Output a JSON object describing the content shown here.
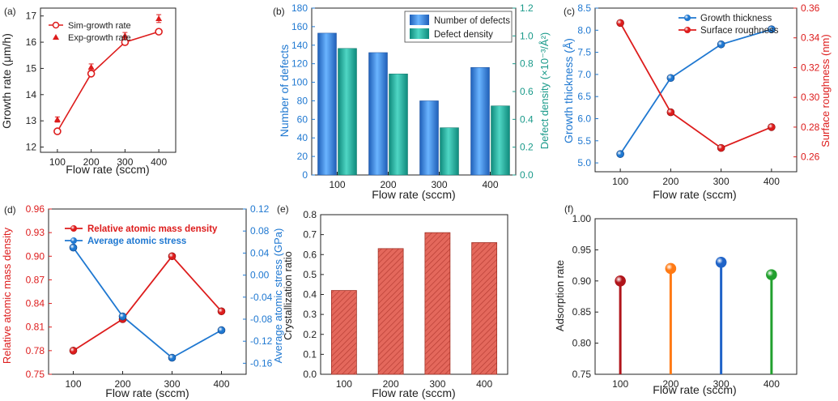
{
  "figure": {
    "colors": {
      "red": "#dd1c1c",
      "blue": "#1f78d1",
      "teal": "#1a9a8a",
      "bar_blue": "#3a8ee6",
      "bar_teal": "#22b3a3",
      "bar_red": "#e4685c",
      "lollipop": [
        "#b0141a",
        "#ff7a14",
        "#1f63c8",
        "#22a02e"
      ]
    }
  },
  "chart_data": [
    {
      "id": "a",
      "panel_label": "(a)",
      "type": "line",
      "x": [
        100,
        200,
        300,
        400
      ],
      "xticks": [
        "100",
        "200",
        "300",
        "400"
      ],
      "xlim": [
        50,
        450
      ],
      "xlabel": "Flow rate (sccm)",
      "ylabel": "Growth rate (μm/h)",
      "ylim": [
        11.8,
        17.3
      ],
      "yticks": [
        "12",
        "13",
        "14",
        "15",
        "16",
        "17"
      ],
      "series": [
        {
          "name": "Sim-growth rate",
          "values": [
            12.6,
            14.8,
            16.0,
            16.4
          ]
        },
        {
          "name": "Exp-growth rate",
          "values": [
            13.05,
            15.05,
            16.25,
            16.9
          ],
          "error": [
            0.1,
            0.12,
            0.12,
            0.15
          ]
        }
      ],
      "legend_position": "top-left"
    },
    {
      "id": "b",
      "panel_label": "(b)",
      "type": "bar",
      "categories": [
        "100",
        "200",
        "300",
        "400"
      ],
      "xlabel": "Flow rate (sccm)",
      "ylabel": "Number of defects",
      "ylim": [
        0,
        180
      ],
      "yticks": [
        "0",
        "20",
        "40",
        "60",
        "80",
        "100",
        "120",
        "140",
        "160",
        "180"
      ],
      "ylabel_right": "Defect density (×10⁻³/Å²)",
      "ylim_right": [
        0,
        1.2
      ],
      "yticks_right": [
        "0.0",
        "0.2",
        "0.4",
        "0.6",
        "0.8",
        "1.0",
        "1.2"
      ],
      "series": [
        {
          "name": "Number of defects",
          "axis": "left",
          "values": [
            153,
            132,
            80,
            116
          ]
        },
        {
          "name": "Defect density",
          "axis": "right",
          "values": [
            0.91,
            0.727,
            0.34,
            0.497
          ]
        }
      ],
      "legend_position": "top-right"
    },
    {
      "id": "c",
      "panel_label": "(c)",
      "type": "line",
      "x": [
        100,
        200,
        300,
        400
      ],
      "xticks": [
        "100",
        "200",
        "300",
        "400"
      ],
      "xlim": [
        50,
        450
      ],
      "xlabel": "Flow rate (sccm)",
      "ylabel": "Growth thickness (Å)",
      "ylim": [
        4.8,
        8.5
      ],
      "yticks": [
        "5.0",
        "5.5",
        "6.0",
        "6.5",
        "7.0",
        "7.5",
        "8.0",
        "8.5"
      ],
      "ylabel_right": "Surface roughness (nm)",
      "ylim_right": [
        0.25,
        0.36
      ],
      "yticks_right": [
        "0.26",
        "0.28",
        "0.30",
        "0.32",
        "0.34",
        "0.36"
      ],
      "series": [
        {
          "name": "Growth thickness",
          "axis": "left",
          "values": [
            5.2,
            6.92,
            7.68,
            8.02
          ]
        },
        {
          "name": "Surface roughness",
          "axis": "right",
          "values": [
            0.35,
            0.29,
            0.266,
            0.28
          ]
        }
      ],
      "legend_position": "top-right"
    },
    {
      "id": "d",
      "panel_label": "(d)",
      "type": "line",
      "x": [
        100,
        200,
        300,
        400
      ],
      "xticks": [
        "100",
        "200",
        "300",
        "400"
      ],
      "xlim": [
        50,
        450
      ],
      "xlabel": "Flow rate (sccm)",
      "ylabel": "Relative atomic mass density",
      "ylim": [
        0.75,
        0.96
      ],
      "yticks": [
        "0.75",
        "0.78",
        "0.81",
        "0.84",
        "0.87",
        "0.90",
        "0.93",
        "0.96"
      ],
      "ylabel_right": "Average atomic stress (GPa)",
      "ylim_right": [
        -0.18,
        0.12
      ],
      "yticks_right": [
        "-0.16",
        "-0.12",
        "-0.08",
        "-0.04",
        "0.00",
        "0.04",
        "0.08",
        "0.12"
      ],
      "series": [
        {
          "name": "Relative atomic mass density",
          "axis": "left",
          "values": [
            0.78,
            0.82,
            0.9,
            0.83
          ]
        },
        {
          "name": "Average atomic stress",
          "axis": "right",
          "values": [
            0.05,
            -0.075,
            -0.15,
            -0.1
          ]
        }
      ],
      "legend_position": "top-left"
    },
    {
      "id": "e",
      "panel_label": "(e)",
      "type": "bar",
      "categories": [
        "100",
        "200",
        "300",
        "400"
      ],
      "xlabel": "Flow rate (sccm)",
      "ylabel": "Crystallization ratio",
      "ylim": [
        0,
        0.8
      ],
      "yticks": [
        "0.0",
        "0.1",
        "0.2",
        "0.3",
        "0.4",
        "0.5",
        "0.6",
        "0.7",
        "0.8"
      ],
      "values": [
        0.42,
        0.63,
        0.71,
        0.66
      ]
    },
    {
      "id": "f",
      "panel_label": "(f)",
      "type": "lollipop",
      "categories": [
        "100",
        "200",
        "300",
        "400"
      ],
      "xlabel": "Flow rate (sccm)",
      "ylabel": "Adsorption rate",
      "ylim": [
        0.75,
        1.0
      ],
      "yticks": [
        "0.75",
        "0.80",
        "0.85",
        "0.90",
        "0.95",
        "1.00"
      ],
      "values": [
        0.9,
        0.92,
        0.93,
        0.91
      ]
    }
  ]
}
